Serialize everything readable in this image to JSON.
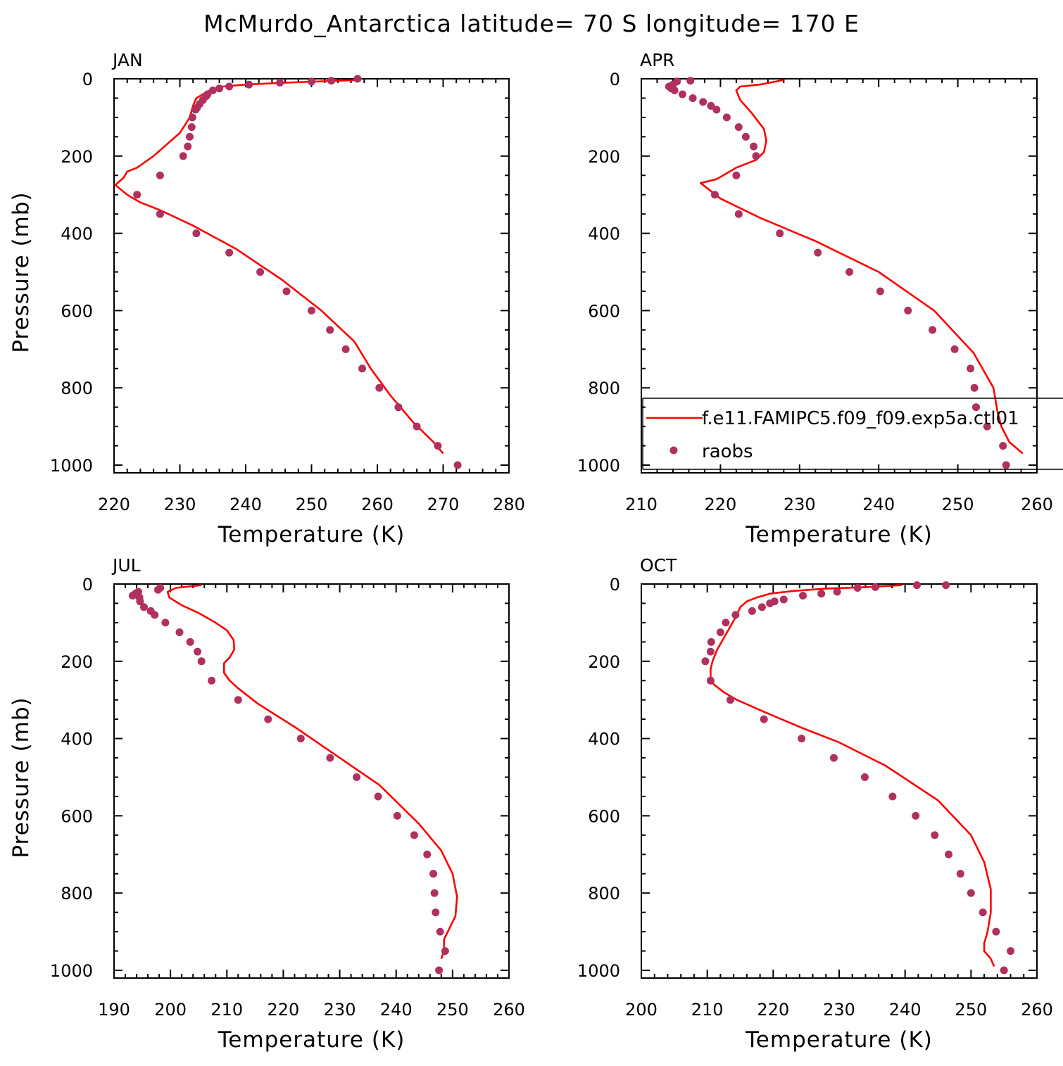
{
  "title": "McMurdo_Antarctica  latitude= 70 S longitude= 170 E",
  "colors": {
    "model": "#ff0000",
    "obs": "#b03060",
    "frame": "#000000"
  },
  "legend": {
    "model_label": "f.e11.FAMIPC5.f09_f09.exp5a.ctl01",
    "obs_label": "raobs"
  },
  "chart_data": [
    {
      "type": "line",
      "panel": "JAN",
      "xlabel": "Temperature (K)",
      "ylabel": "Pressure (mb)",
      "xlim": [
        220,
        280
      ],
      "ylim": [
        1020,
        0
      ],
      "xticks": [
        220,
        230,
        240,
        250,
        260,
        270,
        280
      ],
      "yticks": [
        0,
        200,
        400,
        600,
        800,
        1000
      ],
      "series": [
        {
          "name": "model",
          "style": "line",
          "x": [
            257.5,
            246,
            240,
            236.5,
            234.5,
            233.5,
            232.5,
            232,
            231.5,
            230,
            228,
            226,
            223.5,
            222,
            221.5,
            220.2,
            222,
            224,
            227,
            232,
            238.5,
            245.5,
            251.5,
            256.5,
            259,
            262,
            265.5,
            268.5,
            270
          ],
          "y": [
            3,
            10,
            15,
            20,
            30,
            40,
            50,
            70,
            100,
            140,
            170,
            200,
            230,
            240,
            255,
            275,
            300,
            320,
            340,
            380,
            440,
            520,
            600,
            680,
            750,
            820,
            890,
            940,
            970
          ]
        },
        {
          "name": "raobs",
          "style": "scatter",
          "x": [
            257,
            253,
            250,
            245.2,
            240.5,
            237.5,
            236,
            235,
            234.2,
            234,
            233.5,
            233,
            232.6,
            232.4,
            231.9,
            231.8,
            231.5,
            231.2,
            230.5,
            227,
            223.5,
            227,
            232.5,
            237.5,
            242.2,
            246.2,
            250,
            252.8,
            255.2,
            257.7,
            260.3,
            263.2,
            266,
            269.2,
            272.2
          ],
          "y": [
            0,
            5,
            7,
            10,
            15,
            20,
            25,
            30,
            40,
            45,
            55,
            65,
            75,
            80,
            100,
            125,
            150,
            175,
            200,
            250,
            300,
            350,
            400,
            450,
            500,
            550,
            600,
            650,
            700,
            750,
            800,
            850,
            900,
            950,
            1000
          ]
        }
      ]
    },
    {
      "type": "line",
      "panel": "APR",
      "xlabel": "Temperature (K)",
      "ylabel": "",
      "xlim": [
        210,
        260
      ],
      "ylim": [
        1020,
        0
      ],
      "xticks": [
        210,
        220,
        230,
        240,
        250,
        260
      ],
      "yticks": [
        0,
        200,
        400,
        600,
        800,
        1000
      ],
      "series": [
        {
          "name": "model",
          "style": "line",
          "x": [
            228,
            225,
            222.5,
            222,
            222.5,
            224,
            225.5,
            225.8,
            225.5,
            224.5,
            222,
            219.5,
            217.5,
            220,
            225,
            232,
            240,
            247,
            252,
            254.5,
            255,
            255.5,
            256.5,
            258.2
          ],
          "y": [
            3,
            15,
            20,
            30,
            55,
            90,
            130,
            160,
            190,
            210,
            230,
            260,
            270,
            310,
            360,
            420,
            500,
            600,
            710,
            800,
            860,
            900,
            940,
            970
          ]
        },
        {
          "name": "raobs",
          "style": "scatter",
          "x": [
            216.2,
            214.5,
            214,
            213.5,
            213.8,
            214.2,
            215.2,
            216.5,
            217.8,
            218.8,
            219.5,
            220.8,
            222.3,
            223.2,
            224.2,
            224.5,
            222,
            219.3,
            222.3,
            227.5,
            232.3,
            236.3,
            240.2,
            243.7,
            246.8,
            249.6,
            251.6,
            252.1,
            252.3,
            253.7,
            255.7,
            256.1
          ],
          "y": [
            5,
            7,
            15,
            20,
            25,
            30,
            40,
            50,
            60,
            70,
            80,
            100,
            125,
            150,
            175,
            200,
            250,
            300,
            350,
            400,
            450,
            500,
            550,
            600,
            650,
            700,
            750,
            800,
            850,
            900,
            950,
            1000
          ]
        }
      ]
    },
    {
      "type": "line",
      "panel": "JUL",
      "xlabel": "Temperature (K)",
      "ylabel": "Pressure (mb)",
      "xlim": [
        190,
        260
      ],
      "ylim": [
        1020,
        0
      ],
      "xticks": [
        190,
        200,
        210,
        220,
        230,
        240,
        250,
        260
      ],
      "yticks": [
        0,
        200,
        400,
        600,
        800,
        1000
      ],
      "series": [
        {
          "name": "model",
          "style": "line",
          "x": [
            205.5,
            201,
            199.5,
            199.8,
            202,
            205,
            208,
            210,
            211.2,
            211.3,
            210.5,
            209.5,
            209.5,
            210.5,
            212,
            215.5,
            222,
            229,
            237,
            244,
            248,
            250,
            250.8,
            250.5,
            249.5,
            248.5,
            248.5,
            248
          ],
          "y": [
            3,
            10,
            20,
            35,
            55,
            75,
            100,
            120,
            145,
            170,
            190,
            205,
            230,
            250,
            270,
            310,
            370,
            440,
            520,
            620,
            690,
            750,
            810,
            860,
            890,
            920,
            950,
            970
          ]
        },
        {
          "name": "raobs",
          "style": "scatter",
          "x": [
            198.2,
            197.8,
            194.3,
            193.8,
            193.3,
            194.5,
            194.6,
            195.3,
            196.5,
            197.2,
            199.1,
            201.6,
            203.5,
            204.8,
            205.5,
            207.3,
            212,
            217.3,
            223.1,
            228.3,
            233,
            236.8,
            240.2,
            243.2,
            245.5,
            246.6,
            246.8,
            247,
            247.8,
            248.7,
            247.6
          ],
          "y": [
            10,
            15,
            20,
            25,
            30,
            35,
            45,
            60,
            70,
            80,
            100,
            125,
            150,
            175,
            200,
            250,
            300,
            350,
            400,
            450,
            500,
            550,
            600,
            650,
            700,
            750,
            800,
            850,
            900,
            950,
            1000
          ]
        }
      ]
    },
    {
      "type": "line",
      "panel": "OCT",
      "xlabel": "Temperature (K)",
      "ylabel": "",
      "xlim": [
        200,
        260
      ],
      "ylim": [
        1020,
        0
      ],
      "xticks": [
        200,
        210,
        220,
        230,
        240,
        250,
        260
      ],
      "yticks": [
        0,
        200,
        400,
        600,
        800,
        1000
      ],
      "series": [
        {
          "name": "model",
          "style": "line",
          "x": [
            239.5,
            234,
            228,
            223,
            219.5,
            217.5,
            216,
            215,
            214.5,
            213.5,
            212.5,
            211.5,
            210.8,
            210.5,
            210.5,
            211,
            212.5,
            214.5,
            218.5,
            224,
            230,
            237,
            245,
            250,
            252,
            253,
            253,
            252.5,
            252,
            252,
            253,
            253.5
          ],
          "y": [
            3,
            8,
            12,
            18,
            25,
            35,
            45,
            60,
            80,
            110,
            140,
            170,
            200,
            220,
            240,
            260,
            280,
            300,
            330,
            370,
            410,
            470,
            560,
            650,
            720,
            790,
            850,
            900,
            930,
            950,
            970,
            990
          ]
        },
        {
          "name": "raobs",
          "style": "scatter",
          "x": [
            246.2,
            241.8,
            235.5,
            232.8,
            229.7,
            227.3,
            224.5,
            221.6,
            220.2,
            219.5,
            218.3,
            216.8,
            214.3,
            212.8,
            212,
            210.6,
            210.5,
            209.7,
            210.5,
            213.5,
            218.6,
            224.3,
            229.2,
            233.9,
            238.1,
            241.6,
            244.5,
            246.6,
            248.4,
            250,
            251.8,
            253.8,
            256,
            255
          ],
          "y": [
            3,
            3,
            8,
            10,
            20,
            25,
            30,
            40,
            45,
            50,
            60,
            70,
            80,
            100,
            125,
            150,
            175,
            200,
            250,
            300,
            350,
            400,
            450,
            500,
            550,
            600,
            650,
            700,
            750,
            800,
            850,
            900,
            950,
            1000
          ]
        }
      ]
    }
  ]
}
